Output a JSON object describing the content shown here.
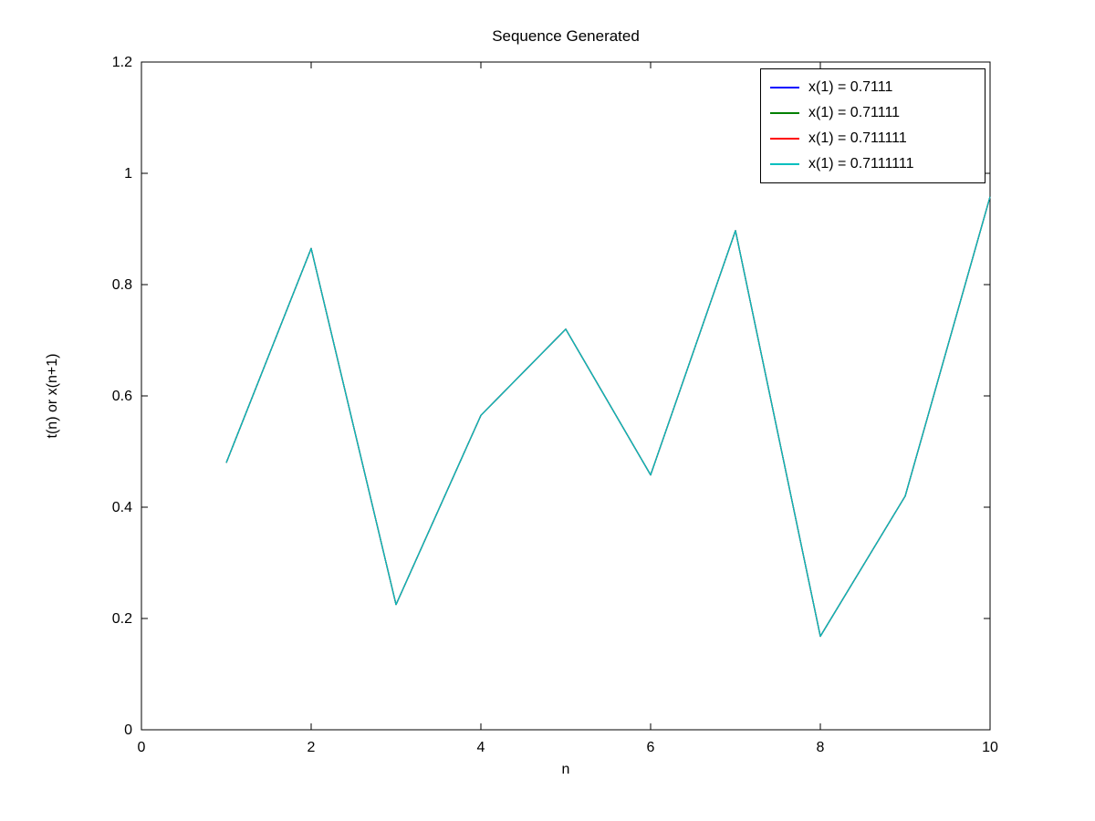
{
  "figure": {
    "title": "Sequence Generated",
    "xlabel": "n",
    "ylabel": "t(n) or x(n+1)"
  },
  "chart_data": {
    "type": "line",
    "title": "Sequence Generated",
    "xlabel": "n",
    "ylabel": "t(n) or x(n+1)",
    "xlim": [
      0,
      10
    ],
    "ylim": [
      0,
      1.2
    ],
    "xticks": [
      0,
      2,
      4,
      6,
      8,
      10
    ],
    "yticks": [
      0,
      0.2,
      0.4,
      0.6,
      0.8,
      1,
      1.2
    ],
    "grid": false,
    "legend_position": "top-right",
    "x": [
      1,
      2,
      3,
      4,
      5,
      6,
      7,
      8,
      9,
      10
    ],
    "series": [
      {
        "name": "x(1) = 0.7111",
        "color": "#0000FF",
        "values": [
          0.48,
          0.865,
          0.225,
          0.565,
          0.72,
          0.458,
          0.897,
          0.168,
          0.42,
          0.958
        ]
      },
      {
        "name": "x(1) = 0.71111",
        "color": "#008000",
        "values": [
          0.48,
          0.865,
          0.225,
          0.565,
          0.72,
          0.458,
          0.897,
          0.168,
          0.42,
          0.958
        ]
      },
      {
        "name": "x(1) = 0.711111",
        "color": "#FF0000",
        "values": [
          0.48,
          0.865,
          0.225,
          0.565,
          0.72,
          0.458,
          0.897,
          0.168,
          0.42,
          0.958
        ]
      },
      {
        "name": "x(1) = 0.7111111",
        "color": "#00BFBF",
        "values": [
          0.48,
          0.865,
          0.225,
          0.565,
          0.72,
          0.458,
          0.897,
          0.168,
          0.42,
          0.958
        ]
      }
    ]
  }
}
